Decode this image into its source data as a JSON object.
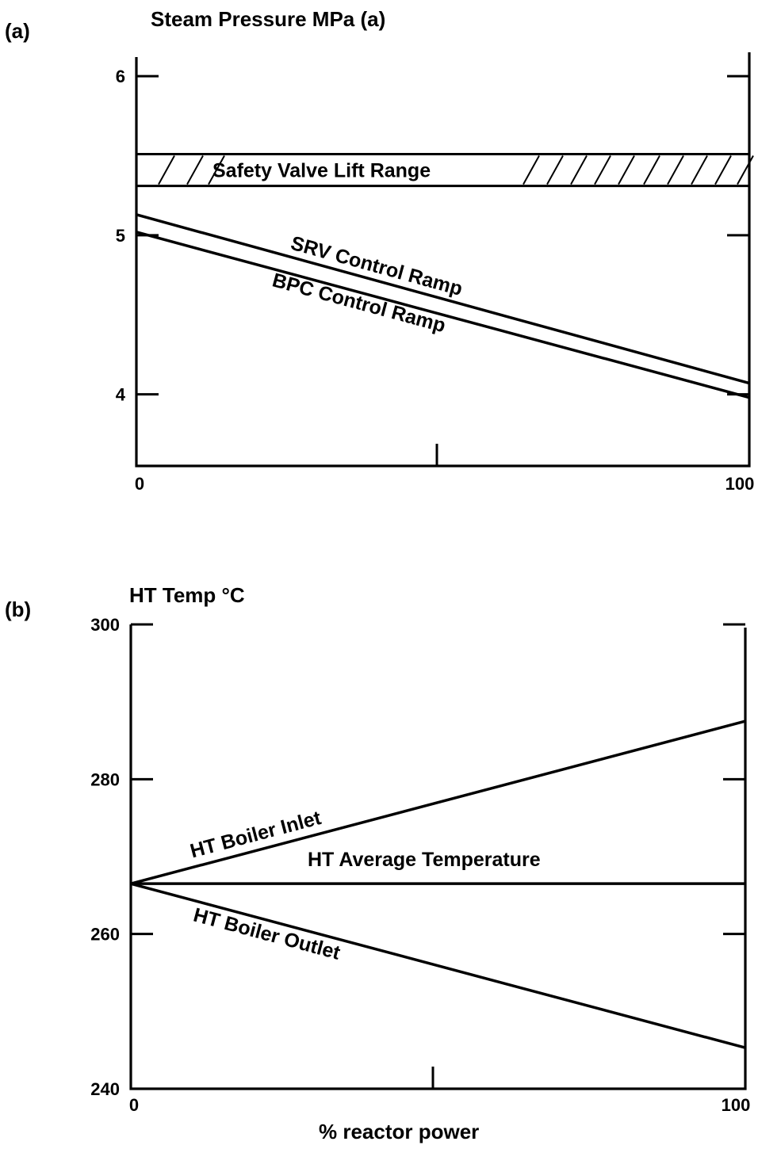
{
  "chart_data": [
    {
      "id": "a",
      "type": "line",
      "panel_label": "(a)",
      "ylabel": "Steam Pressure MPa (a)",
      "xlim": [
        0,
        100
      ],
      "ylim": [
        3.55,
        6.15
      ],
      "y_ticks": [
        4,
        5,
        6
      ],
      "y_tick_labels": [
        "4",
        "5",
        "6"
      ],
      "x_tick_labels": [
        {
          "x": 0,
          "label": "0"
        },
        {
          "x": 100,
          "label": "100"
        }
      ],
      "band": {
        "name": "Safety Valve Lift Range",
        "y_min": 5.31,
        "y_max": 5.51
      },
      "series": [
        {
          "name": "SRV Control Ramp",
          "x": [
            0,
            100
          ],
          "y": [
            5.13,
            4.07
          ]
        },
        {
          "name": "BPC Control Ramp",
          "x": [
            0,
            100
          ],
          "y": [
            5.02,
            3.98
          ]
        }
      ],
      "grid": false
    },
    {
      "id": "b",
      "type": "line",
      "panel_label": "(b)",
      "ylabel": "HT Temp °C",
      "xlabel": "% reactor power",
      "xlim": [
        0,
        100
      ],
      "ylim": [
        240,
        300
      ],
      "y_ticks": [
        240,
        260,
        280,
        300
      ],
      "y_tick_labels": [
        "240",
        "260",
        "280",
        "300"
      ],
      "x_tick_labels": [
        {
          "x": 0,
          "label": "0"
        },
        {
          "x": 100,
          "label": "100"
        }
      ],
      "series": [
        {
          "name": "HT Boiler Inlet",
          "x": [
            0,
            100
          ],
          "y": [
            266.5,
            287.5
          ]
        },
        {
          "name": "HT Average Temperature",
          "x": [
            0,
            100
          ],
          "y": [
            266.5,
            266.5
          ]
        },
        {
          "name": "HT Boiler Outlet",
          "x": [
            0,
            100
          ],
          "y": [
            266.5,
            245.3
          ]
        }
      ],
      "grid": false
    }
  ]
}
